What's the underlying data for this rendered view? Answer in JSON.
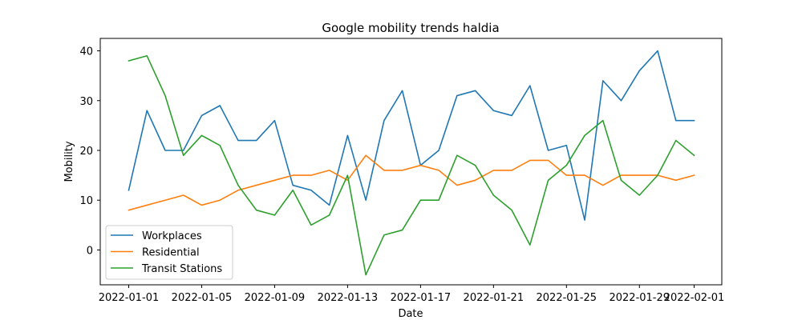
{
  "chart_data": {
    "type": "line",
    "title": "Google mobility trends haldia",
    "xlabel": "Date",
    "ylabel": "Mobility",
    "x": [
      "2022-01-01",
      "2022-01-02",
      "2022-01-03",
      "2022-01-04",
      "2022-01-05",
      "2022-01-06",
      "2022-01-07",
      "2022-01-08",
      "2022-01-09",
      "2022-01-10",
      "2022-01-11",
      "2022-01-12",
      "2022-01-13",
      "2022-01-14",
      "2022-01-15",
      "2022-01-16",
      "2022-01-17",
      "2022-01-18",
      "2022-01-19",
      "2022-01-20",
      "2022-01-21",
      "2022-01-22",
      "2022-01-23",
      "2022-01-24",
      "2022-01-25",
      "2022-01-26",
      "2022-01-27",
      "2022-01-28",
      "2022-01-29",
      "2022-01-30",
      "2022-01-31",
      "2022-02-01"
    ],
    "x_ticks": [
      "2022-01-01",
      "2022-01-05",
      "2022-01-09",
      "2022-01-13",
      "2022-01-17",
      "2022-01-21",
      "2022-01-25",
      "2022-01-29",
      "2022-02-01"
    ],
    "y_ticks": [
      0,
      10,
      20,
      30,
      40
    ],
    "ylim": [
      -7,
      42.5
    ],
    "grid": false,
    "legend_position": "lower-left",
    "series": [
      {
        "name": "Workplaces",
        "color": "#1f77b4",
        "values": [
          12,
          28,
          20,
          20,
          27,
          29,
          22,
          22,
          26,
          13,
          12,
          9,
          23,
          10,
          26,
          32,
          17,
          20,
          31,
          32,
          28,
          27,
          33,
          20,
          21,
          6,
          34,
          30,
          36,
          40,
          26,
          26
        ]
      },
      {
        "name": "Residential",
        "color": "#ff7f0e",
        "values": [
          8,
          9,
          10,
          11,
          9,
          10,
          12,
          13,
          14,
          15,
          15,
          16,
          14,
          19,
          16,
          16,
          17,
          16,
          13,
          14,
          16,
          16,
          18,
          18,
          15,
          15,
          13,
          15,
          15,
          15,
          14,
          15
        ]
      },
      {
        "name": "Transit Stations",
        "color": "#2ca02c",
        "values": [
          38,
          39,
          31,
          19,
          23,
          21,
          13,
          8,
          7,
          12,
          5,
          7,
          15,
          -5,
          3,
          4,
          10,
          10,
          19,
          17,
          11,
          8,
          1,
          14,
          17,
          23,
          26,
          14,
          11,
          15,
          22,
          19
        ]
      }
    ]
  }
}
